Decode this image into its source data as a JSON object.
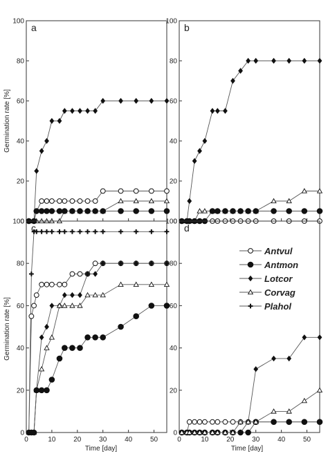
{
  "chart_data": {
    "type": "line",
    "ylabel": "Germination rate [%]",
    "xlabel": "Time [day]",
    "xlim": [
      0,
      55
    ],
    "ylim": [
      0,
      100
    ],
    "xticks": [
      0,
      10,
      20,
      30,
      40,
      50
    ],
    "yticks": [
      0,
      20,
      40,
      60,
      80,
      100
    ],
    "grid": false,
    "legend": {
      "placement": "panel d, top-right",
      "entries": [
        {
          "name": "Antvul",
          "marker": "open-circle"
        },
        {
          "name": "Antmon",
          "marker": "filled-circle"
        },
        {
          "name": "Lotcor",
          "marker": "filled-diamond"
        },
        {
          "name": "Corvag",
          "marker": "open-triangle"
        },
        {
          "name": "Plahol",
          "marker": "plus"
        }
      ]
    },
    "panels": [
      {
        "letter": "a",
        "series": [
          {
            "name": "Lotcor",
            "x": [
              1,
              3,
              4,
              6,
              8,
              10,
              13,
              15,
              18,
              21,
              24,
              27,
              30,
              37,
              43,
              49,
              55
            ],
            "y": [
              0,
              0,
              25,
              35,
              40,
              50,
              50,
              55,
              55,
              55,
              55,
              55,
              60,
              60,
              60,
              60,
              60
            ]
          },
          {
            "name": "Antvul",
            "x": [
              1,
              3,
              4,
              6,
              8,
              10,
              13,
              15,
              18,
              21,
              24,
              27,
              30,
              37,
              43,
              49,
              55
            ],
            "y": [
              0,
              0,
              5,
              10,
              10,
              10,
              10,
              10,
              10,
              10,
              10,
              10,
              15,
              15,
              15,
              15,
              15
            ]
          },
          {
            "name": "Corvag",
            "x": [
              1,
              3,
              4,
              6,
              8,
              10,
              13,
              15,
              18,
              21,
              24,
              27,
              30,
              37,
              43,
              49,
              55
            ],
            "y": [
              0,
              0,
              0,
              0,
              0,
              0,
              0,
              5,
              5,
              5,
              5,
              5,
              5,
              10,
              10,
              10,
              10
            ]
          },
          {
            "name": "Antmon",
            "x": [
              1,
              3,
              4,
              6,
              8,
              10,
              13,
              15,
              18,
              21,
              24,
              27,
              30,
              37,
              43,
              49,
              55
            ],
            "y": [
              0,
              0,
              5,
              5,
              5,
              5,
              5,
              5,
              5,
              5,
              5,
              5,
              5,
              5,
              5,
              5,
              5
            ]
          }
        ]
      },
      {
        "letter": "b",
        "series": [
          {
            "name": "Lotcor",
            "x": [
              1,
              3,
              4,
              6,
              8,
              10,
              13,
              15,
              18,
              21,
              24,
              27,
              30,
              37,
              43,
              49,
              55
            ],
            "y": [
              0,
              0,
              10,
              30,
              35,
              40,
              55,
              55,
              55,
              70,
              75,
              80,
              80,
              80,
              80,
              80,
              80
            ]
          },
          {
            "name": "Corvag",
            "x": [
              1,
              3,
              4,
              6,
              8,
              10,
              13,
              15,
              18,
              21,
              24,
              27,
              30,
              37,
              43,
              49,
              55
            ],
            "y": [
              0,
              0,
              0,
              0,
              5,
              5,
              5,
              5,
              5,
              5,
              5,
              5,
              5,
              10,
              10,
              15,
              15
            ]
          },
          {
            "name": "Antvul",
            "x": [
              1,
              3,
              4,
              6,
              8,
              10,
              13,
              15,
              18,
              21,
              24,
              27,
              30,
              37,
              43,
              49,
              55
            ],
            "y": [
              0,
              0,
              0,
              0,
              0,
              0,
              0,
              0,
              0,
              0,
              0,
              0,
              0,
              0,
              0,
              0,
              0
            ]
          },
          {
            "name": "Antmon",
            "x": [
              1,
              3,
              4,
              6,
              8,
              10,
              13,
              15,
              18,
              21,
              24,
              27,
              30,
              37,
              43,
              49,
              55
            ],
            "y": [
              0,
              0,
              0,
              0,
              0,
              0,
              5,
              5,
              5,
              5,
              5,
              5,
              5,
              5,
              5,
              5,
              5
            ]
          }
        ]
      },
      {
        "letter": "c",
        "series": [
          {
            "name": "Plahol",
            "x": [
              1,
              2,
              3,
              4,
              6,
              8,
              10,
              13,
              15,
              18,
              21,
              24,
              27,
              30,
              37,
              43,
              49,
              55
            ],
            "y": [
              0,
              75,
              95,
              95,
              95,
              95,
              95,
              95,
              95,
              95,
              95,
              95,
              95,
              95,
              95,
              95,
              95,
              95
            ]
          },
          {
            "name": "Antvul",
            "x": [
              1,
              2,
              3,
              4,
              6,
              8,
              10,
              13,
              15,
              18,
              21,
              24,
              27,
              30,
              37,
              43,
              49,
              55
            ],
            "y": [
              0,
              55,
              60,
              65,
              70,
              70,
              70,
              70,
              70,
              75,
              75,
              75,
              80,
              80,
              80,
              80,
              80,
              80
            ]
          },
          {
            "name": "Lotcor",
            "x": [
              1,
              2,
              3,
              4,
              6,
              8,
              10,
              13,
              15,
              18,
              21,
              24,
              27,
              30,
              37,
              43,
              49,
              55
            ],
            "y": [
              0,
              0,
              0,
              20,
              45,
              50,
              60,
              60,
              65,
              65,
              65,
              75,
              75,
              80,
              80,
              80,
              80,
              80
            ]
          },
          {
            "name": "Corvag",
            "x": [
              1,
              2,
              3,
              4,
              6,
              8,
              10,
              13,
              15,
              18,
              21,
              24,
              27,
              30,
              37,
              43,
              49,
              55
            ],
            "y": [
              0,
              0,
              0,
              20,
              30,
              40,
              45,
              60,
              60,
              60,
              60,
              65,
              65,
              65,
              70,
              70,
              70,
              70
            ]
          },
          {
            "name": "Antmon",
            "x": [
              1,
              2,
              3,
              4,
              6,
              8,
              10,
              13,
              15,
              18,
              21,
              24,
              27,
              30,
              37,
              43,
              49,
              55
            ],
            "y": [
              0,
              0,
              0,
              20,
              20,
              20,
              25,
              35,
              40,
              40,
              40,
              45,
              45,
              45,
              50,
              55,
              60,
              60
            ]
          }
        ]
      },
      {
        "letter": "d",
        "series": [
          {
            "name": "Antvul",
            "x": [
              1,
              3,
              4,
              6,
              8,
              10,
              13,
              15,
              18,
              21,
              24,
              27,
              30,
              37,
              43,
              49,
              55
            ],
            "y": [
              0,
              0,
              5,
              5,
              5,
              5,
              5,
              5,
              5,
              5,
              5,
              5,
              5,
              5,
              5,
              5,
              5
            ]
          },
          {
            "name": "Antmon",
            "x": [
              1,
              3,
              4,
              6,
              8,
              10,
              13,
              15,
              18,
              21,
              24,
              27,
              30,
              37,
              43,
              49,
              55
            ],
            "y": [
              0,
              0,
              0,
              0,
              0,
              0,
              0,
              0,
              0,
              0,
              0,
              0,
              5,
              5,
              5,
              5,
              5
            ]
          },
          {
            "name": "Lotcor",
            "x": [
              1,
              3,
              4,
              6,
              8,
              10,
              13,
              15,
              18,
              21,
              24,
              27,
              30,
              37,
              43,
              49,
              55
            ],
            "y": [
              0,
              0,
              0,
              0,
              0,
              0,
              0,
              0,
              0,
              0,
              0,
              5,
              30,
              35,
              35,
              45,
              45
            ]
          },
          {
            "name": "Corvag",
            "x": [
              1,
              3,
              4,
              6,
              8,
              10,
              13,
              15,
              18,
              21,
              24,
              27,
              30,
              37,
              43,
              49,
              55
            ],
            "y": [
              0,
              0,
              0,
              0,
              0,
              0,
              0,
              0,
              0,
              0,
              5,
              5,
              5,
              10,
              10,
              15,
              20
            ]
          }
        ]
      }
    ]
  }
}
